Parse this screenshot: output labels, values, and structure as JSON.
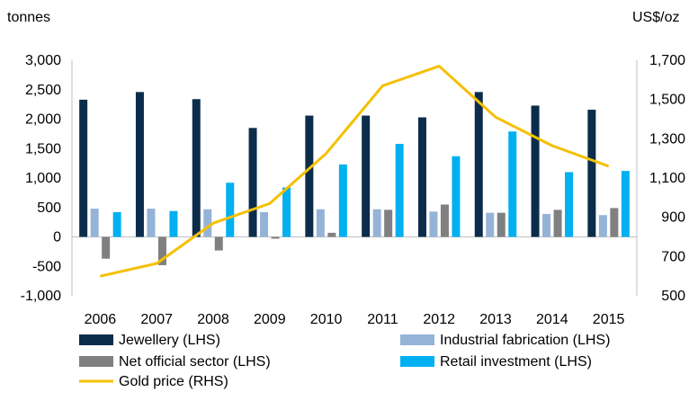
{
  "chart_data": {
    "type": "bar",
    "left_axis_unit": "tonnes",
    "right_axis_unit": "US$/oz",
    "categories": [
      "2006",
      "2007",
      "2008",
      "2009",
      "2010",
      "2011",
      "2012",
      "2013",
      "2014",
      "2015"
    ],
    "y_left": {
      "ylim": [
        -1000,
        3000
      ],
      "ticks": [
        3000,
        2500,
        2000,
        1500,
        1000,
        500,
        0,
        -500,
        -1000
      ],
      "tick_labels": [
        "3,000",
        "2,500",
        "2,000",
        "1,500",
        "1,000",
        "500",
        "0",
        "-500",
        "-1,000"
      ]
    },
    "y_right": {
      "ylim": [
        500,
        1700
      ],
      "ticks": [
        1700,
        1500,
        1300,
        1100,
        900,
        700,
        500
      ],
      "tick_labels": [
        "1,700",
        "1,500",
        "1,300",
        "1,100",
        "900",
        "700",
        "500"
      ]
    },
    "series": [
      {
        "name": "Jewellery (LHS)",
        "kind": "bar",
        "axis": "left",
        "color": "#0b2d4b",
        "values": [
          2330,
          2460,
          2340,
          1850,
          2060,
          2060,
          2030,
          2460,
          2230,
          2160
        ]
      },
      {
        "name": "Industrial fabrication (LHS)",
        "kind": "bar",
        "axis": "left",
        "color": "#95b3d7",
        "values": [
          480,
          480,
          470,
          420,
          470,
          470,
          430,
          410,
          390,
          370
        ]
      },
      {
        "name": "Net official sector (LHS)",
        "kind": "bar",
        "axis": "left",
        "color": "#808080",
        "values": [
          -370,
          -480,
          -230,
          -30,
          70,
          460,
          550,
          410,
          460,
          490
        ]
      },
      {
        "name": "Retail investment (LHS)",
        "kind": "bar",
        "axis": "left",
        "color": "#00b0f0",
        "values": [
          420,
          440,
          920,
          840,
          1230,
          1580,
          1370,
          1790,
          1100,
          1120
        ]
      },
      {
        "name": "Gold price (RHS)",
        "kind": "line",
        "axis": "right",
        "color": "#f5c000",
        "values": [
          600,
          665,
          870,
          970,
          1225,
          1570,
          1670,
          1410,
          1265,
          1160
        ]
      }
    ],
    "grid": false,
    "legend_position": "bottom"
  }
}
